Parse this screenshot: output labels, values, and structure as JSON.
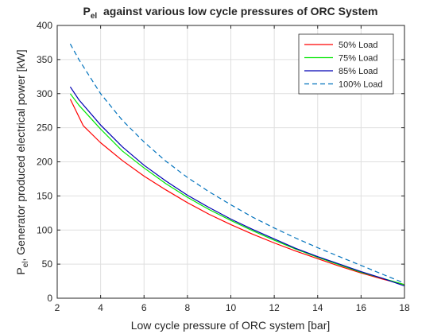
{
  "chart_data": {
    "type": "line",
    "title_main": "P",
    "title_sub": "el",
    "title_rest": "  against various low cycle pressures of ORC System",
    "xlabel": "Low cycle pressure of ORC system [bar]",
    "ylabel_main": "P",
    "ylabel_sub": "el",
    "ylabel_rest": ", Generator produced electrical power [kW]",
    "xlim": [
      2,
      18
    ],
    "ylim": [
      0,
      400
    ],
    "xticks": [
      2,
      4,
      6,
      8,
      10,
      12,
      14,
      16,
      18
    ],
    "yticks": [
      0,
      50,
      100,
      150,
      200,
      250,
      300,
      350,
      400
    ],
    "grid": true,
    "legend_position": "top-right",
    "series": [
      {
        "name": "50% Load",
        "color": "#ff0000",
        "dash": "solid",
        "x": [
          2.6,
          3.2,
          4,
          5,
          6,
          7,
          8,
          9,
          10,
          11,
          12,
          13,
          14,
          15,
          16,
          17,
          18
        ],
        "y": [
          292,
          253,
          228,
          202,
          179,
          159,
          140,
          123,
          108,
          94,
          81,
          69,
          58,
          47,
          37,
          28,
          20
        ]
      },
      {
        "name": "75% Load",
        "color": "#00e600",
        "dash": "solid",
        "x": [
          2.6,
          3,
          4,
          5,
          6,
          7,
          8,
          9,
          10,
          11,
          12,
          13,
          14,
          15,
          16,
          17,
          18
        ],
        "y": [
          300,
          283,
          248,
          216,
          191,
          168,
          148,
          130,
          114,
          99,
          85,
          72,
          60,
          49,
          38,
          29,
          20
        ]
      },
      {
        "name": "85% Load",
        "color": "#0000b3",
        "dash": "solid",
        "x": [
          2.6,
          3,
          4,
          5,
          6,
          7,
          8,
          9,
          10,
          11,
          12,
          13,
          14,
          15,
          16,
          17,
          18
        ],
        "y": [
          310,
          291,
          254,
          222,
          195,
          172,
          151,
          133,
          116,
          101,
          87,
          73,
          61,
          50,
          39,
          29,
          18
        ]
      },
      {
        "name": "100% Load",
        "color": "#0072bd",
        "dash": "dashed",
        "x": [
          2.6,
          3,
          4,
          5,
          6,
          7,
          8,
          9,
          10,
          11,
          12,
          13,
          14,
          15,
          16,
          17,
          18
        ],
        "y": [
          373,
          350,
          300,
          261,
          229,
          201,
          177,
          156,
          137,
          119,
          103,
          88,
          74,
          61,
          48,
          35,
          22
        ]
      }
    ]
  }
}
